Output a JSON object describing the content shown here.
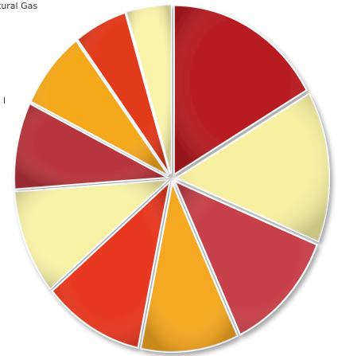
{
  "chart_data": {
    "type": "pie",
    "annotations": [
      "tural Gas",
      "l"
    ],
    "values": [
      16.7,
      14.4,
      11.9,
      10.3,
      10.6,
      10,
      8.3,
      7.5,
      5.6,
      4.7
    ],
    "colors": [
      "#b81c22",
      "#f7f0a0",
      "#c8404a",
      "#f5a820",
      "#e83820",
      "#f8f2a6",
      "#b8343c",
      "#f4a81c",
      "#e23a1c",
      "#faf3aa"
    ]
  }
}
